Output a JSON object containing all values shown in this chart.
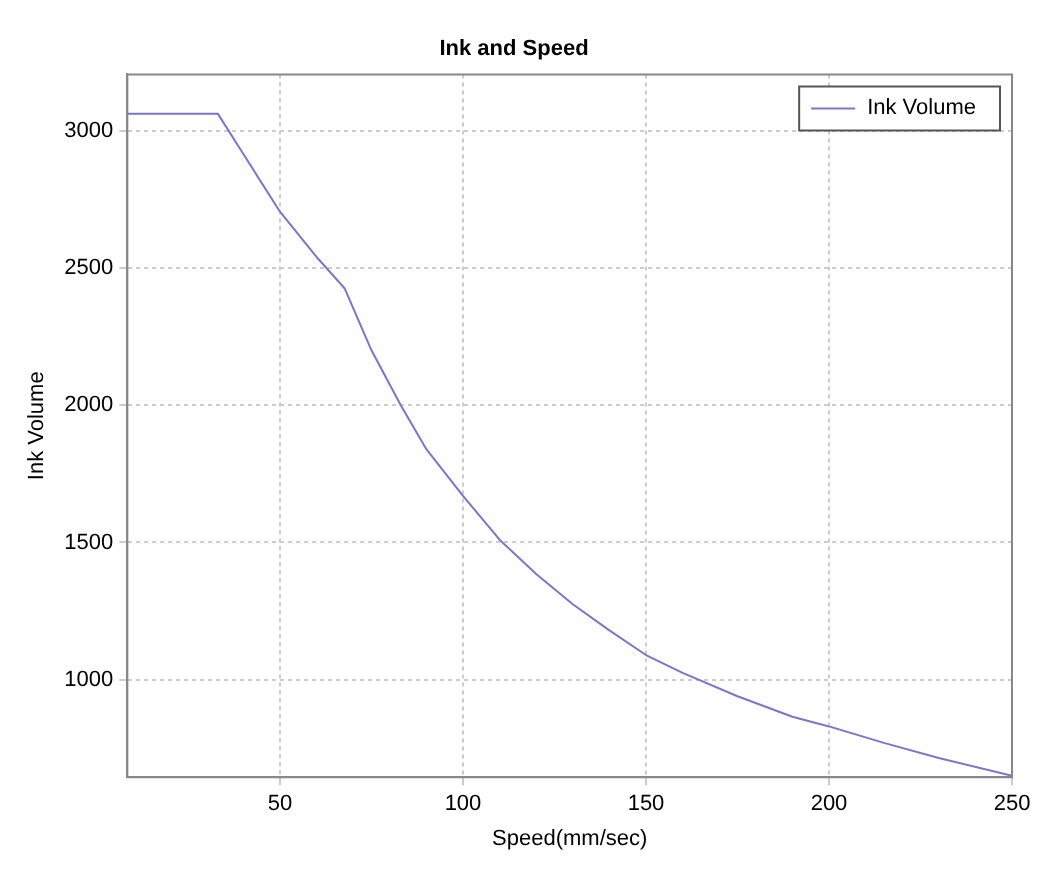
{
  "chart_data": {
    "type": "line",
    "title": "Ink and Speed",
    "xlabel": "Speed(mm/sec)",
    "ylabel": "Ink Volume",
    "x": [
      8.3,
      33,
      40,
      50,
      60,
      67.7,
      75,
      83,
      90,
      100,
      110,
      120,
      130,
      140,
      150,
      160,
      175,
      190,
      200,
      215,
      230,
      250
    ],
    "series": [
      {
        "name": "Ink Volume",
        "color": "#7777cc",
        "values": [
          3062,
          3062,
          2915,
          2705,
          2540,
          2425,
          2200,
          2000,
          1840,
          1670,
          1510,
          1385,
          1275,
          1180,
          1090,
          1025,
          940,
          865,
          830,
          770,
          715,
          650
        ]
      }
    ],
    "xlim": [
      8.3,
      250
    ],
    "xticks": [
      50,
      100,
      150,
      200,
      250
    ],
    "ylim": [
      645,
      3205
    ],
    "yticks": [
      1000,
      1500,
      2000,
      2500,
      3000
    ],
    "grid": true,
    "legend": "top right",
    "marker": "none",
    "line_style": "solid"
  }
}
